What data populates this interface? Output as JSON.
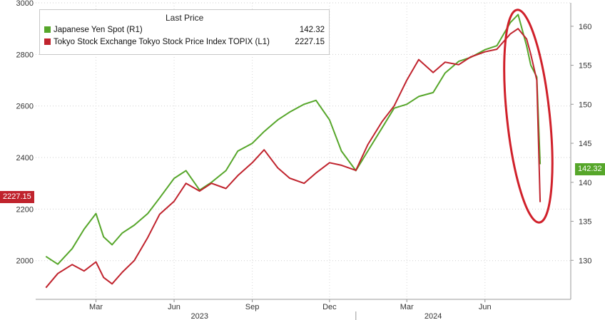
{
  "chart_data": {
    "type": "line",
    "title": "",
    "legend": {
      "header": "Last Price",
      "placement": "top-left"
    },
    "x_dates": [
      "2023-01-01",
      "2023-01-15",
      "2023-02-01",
      "2023-02-15",
      "2023-03-01",
      "2023-03-10",
      "2023-03-20",
      "2023-04-01",
      "2023-04-15",
      "2023-05-01",
      "2023-05-15",
      "2023-06-01",
      "2023-06-15",
      "2023-07-01",
      "2023-07-15",
      "2023-08-01",
      "2023-08-15",
      "2023-09-01",
      "2023-09-15",
      "2023-10-01",
      "2023-10-15",
      "2023-11-01",
      "2023-11-15",
      "2023-12-01",
      "2023-12-15",
      "2024-01-01",
      "2024-01-15",
      "2024-02-01",
      "2024-02-15",
      "2024-03-01",
      "2024-03-15",
      "2024-04-01",
      "2024-04-15",
      "2024-05-01",
      "2024-05-15",
      "2024-06-01",
      "2024-06-15",
      "2024-07-01",
      "2024-07-10",
      "2024-07-20",
      "2024-07-25",
      "2024-08-01",
      "2024-08-05"
    ],
    "series": [
      {
        "name": "Japanese Yen Spot (R1)",
        "axis": "right",
        "color": "#56a62a",
        "last": "142.32",
        "y": [
          130.5,
          129.5,
          131.5,
          134,
          136,
          133,
          132,
          133.5,
          134.5,
          136,
          138,
          140.5,
          141.5,
          139,
          140,
          141.5,
          144,
          145,
          146.5,
          148,
          149,
          150,
          150.5,
          148,
          144,
          141.5,
          144,
          147,
          149.5,
          150,
          151,
          151.5,
          154,
          155.5,
          156,
          157,
          157.5,
          160.5,
          161.5,
          157.5,
          155,
          153.5,
          142.32
        ]
      },
      {
        "name": "Tokyo Stock Exchange Tokyo Stock Price Index TOPIX (L1)",
        "axis": "left",
        "color": "#c0232d",
        "last": "2227.15",
        "y": [
          1895,
          1950,
          1985,
          1960,
          1995,
          1935,
          1910,
          1955,
          2000,
          2090,
          2180,
          2230,
          2300,
          2270,
          2300,
          2280,
          2330,
          2380,
          2430,
          2360,
          2320,
          2300,
          2340,
          2380,
          2370,
          2350,
          2450,
          2540,
          2600,
          2700,
          2780,
          2730,
          2770,
          2760,
          2790,
          2810,
          2820,
          2880,
          2900,
          2860,
          2800,
          2700,
          2227.15
        ]
      }
    ],
    "left_axis": {
      "ylim": [
        1850,
        3000
      ],
      "ticks": [
        "3000",
        "2800",
        "2600",
        "2400",
        "2200",
        "2000"
      ]
    },
    "right_axis": {
      "ylim": [
        125,
        163
      ],
      "ticks": [
        "160",
        "155",
        "150",
        "145",
        "140",
        "135",
        "130"
      ]
    },
    "x_ticks": [
      {
        "date": "2023-03-01",
        "label": "Mar"
      },
      {
        "date": "2023-06-01",
        "label": "Jun"
      },
      {
        "date": "2023-09-01",
        "label": "Sep"
      },
      {
        "date": "2023-12-01",
        "label": "Dec"
      },
      {
        "date": "2024-03-01",
        "label": "Mar"
      },
      {
        "date": "2024-06-01",
        "label": "Jun"
      }
    ],
    "x_year_labels": [
      {
        "date": "2023-07-01",
        "label": "2023"
      },
      {
        "date": "2024-04-01",
        "label": "2024"
      }
    ],
    "x_range": [
      "2022-12-20",
      "2024-09-10"
    ],
    "grid": true,
    "annotation": {
      "type": "ellipse",
      "color": "#d0202a",
      "around": "July-August 2024 drop"
    }
  }
}
